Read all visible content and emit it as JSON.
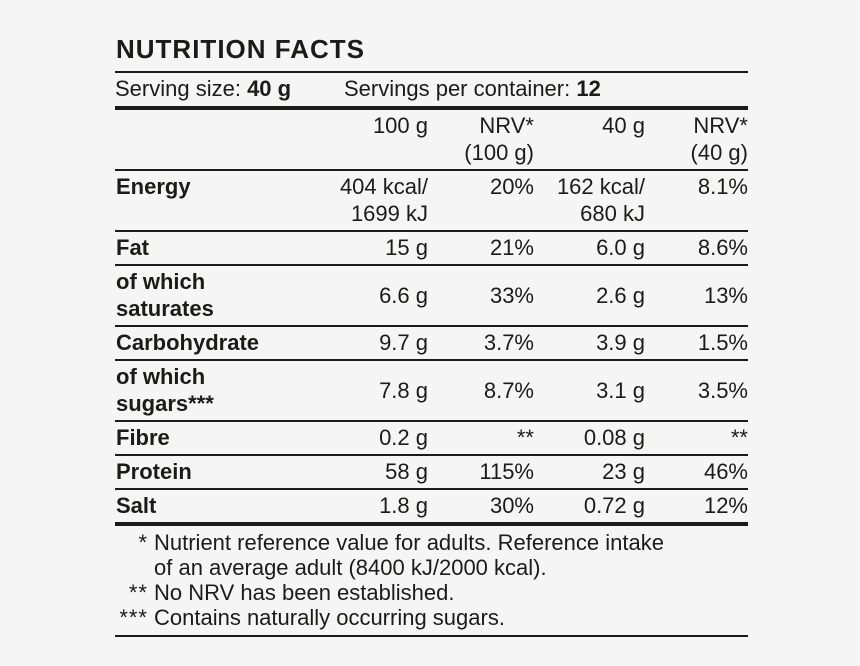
{
  "title": "NUTRITION FACTS",
  "serving": {
    "size_label": "Serving size: ",
    "size_value": "40 g",
    "container_label": "Servings per container: ",
    "container_value": "12"
  },
  "columns": [
    [
      "100 g"
    ],
    [
      "NRV*",
      "(100 g)"
    ],
    [
      "40 g"
    ],
    [
      "NRV*",
      "(40 g)"
    ]
  ],
  "rows": [
    {
      "name": [
        "Energy"
      ],
      "values": [
        [
          "404 kcal/",
          "1699 kJ"
        ],
        [
          "20%"
        ],
        [
          "162 kcal/",
          "680 kJ"
        ],
        [
          "8.1%"
        ]
      ]
    },
    {
      "name": [
        "Fat"
      ],
      "values": [
        [
          "15 g"
        ],
        [
          "21%"
        ],
        [
          "6.0 g"
        ],
        [
          "8.6%"
        ]
      ]
    },
    {
      "name": [
        "of which",
        "saturates"
      ],
      "values": [
        [
          "6.6 g"
        ],
        [
          "33%"
        ],
        [
          "2.6 g"
        ],
        [
          "13%"
        ]
      ]
    },
    {
      "name": [
        "Carbohydrate"
      ],
      "values": [
        [
          "9.7 g"
        ],
        [
          "3.7%"
        ],
        [
          "3.9 g"
        ],
        [
          "1.5%"
        ]
      ]
    },
    {
      "name": [
        "of which",
        "sugars***"
      ],
      "values": [
        [
          "7.8 g"
        ],
        [
          "8.7%"
        ],
        [
          "3.1 g"
        ],
        [
          "3.5%"
        ]
      ]
    },
    {
      "name": [
        "Fibre"
      ],
      "values": [
        [
          "0.2 g"
        ],
        [
          "**"
        ],
        [
          "0.08 g"
        ],
        [
          "**"
        ]
      ]
    },
    {
      "name": [
        "Protein"
      ],
      "values": [
        [
          "58 g"
        ],
        [
          "115%"
        ],
        [
          "23 g"
        ],
        [
          "46%"
        ]
      ]
    },
    {
      "name": [
        "Salt"
      ],
      "values": [
        [
          "1.8 g"
        ],
        [
          "30%"
        ],
        [
          "0.72 g"
        ],
        [
          "12%"
        ]
      ]
    }
  ],
  "footnotes": [
    {
      "marker": "*",
      "text": "Nutrient reference value for adults. Reference intake"
    },
    {
      "marker": "",
      "text": "of an average adult (8400 kJ/2000 kcal)."
    },
    {
      "marker": "**",
      "text": "No NRV has been established."
    },
    {
      "marker": "***",
      "text": "Contains naturally occurring sugars."
    }
  ],
  "colors": {
    "text": "#1b1b19",
    "background": "#f5f5f5"
  }
}
